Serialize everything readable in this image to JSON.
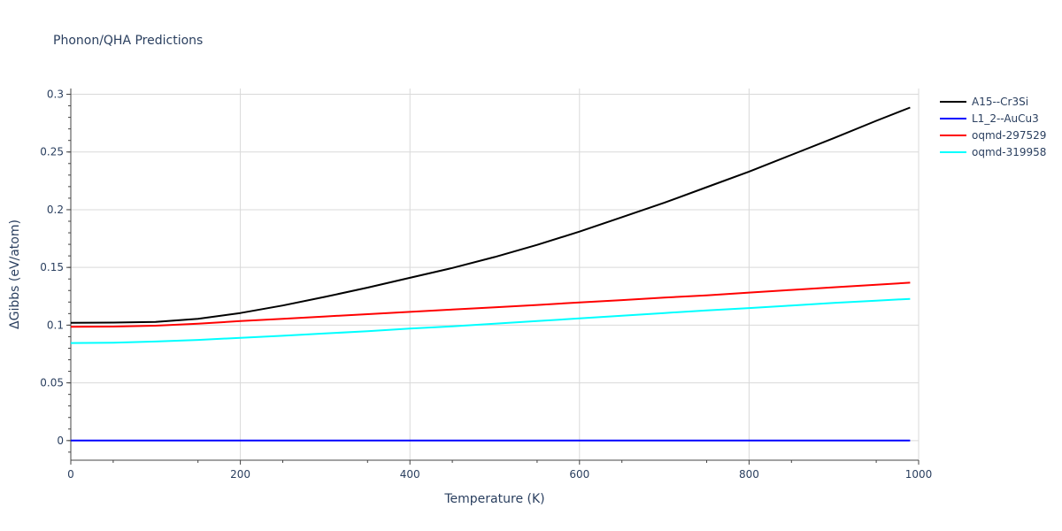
{
  "chart_data": {
    "type": "line",
    "title": "Phonon/QHA Predictions",
    "xlabel": "Temperature (K)",
    "ylabel": "ΔGibbs (eV/atom)",
    "xlim": [
      0,
      1000
    ],
    "ylim": [
      -0.017,
      0.305
    ],
    "x_ticks": [
      0,
      200,
      400,
      600,
      800,
      1000
    ],
    "x_tick_labels": [
      "0",
      "200",
      "400",
      "600",
      "800",
      "1000"
    ],
    "y_ticks": [
      0,
      0.05,
      0.1,
      0.15,
      0.2,
      0.25,
      0.3
    ],
    "y_tick_labels": [
      "0",
      "0.05",
      "0.1",
      "0.15",
      "0.2",
      "0.25",
      "0.3"
    ],
    "grid": true,
    "legend_position": "top-right",
    "series": [
      {
        "name": "A15--Cr3Si",
        "color": "#000000",
        "x": [
          0,
          50,
          100,
          150,
          200,
          250,
          300,
          350,
          400,
          450,
          500,
          550,
          600,
          650,
          700,
          750,
          800,
          850,
          900,
          950,
          990
        ],
        "y": [
          0.102,
          0.1022,
          0.1028,
          0.1055,
          0.1105,
          0.117,
          0.1245,
          0.1325,
          0.141,
          0.1495,
          0.159,
          0.1695,
          0.181,
          0.1935,
          0.206,
          0.2195,
          0.233,
          0.2475,
          0.262,
          0.277,
          0.2885
        ]
      },
      {
        "name": "L1_2--AuCu3",
        "color": "#0000ff",
        "x": [
          0,
          990
        ],
        "y": [
          0.0,
          0.0
        ]
      },
      {
        "name": "oqmd-297529",
        "color": "#ff0000",
        "x": [
          0,
          50,
          100,
          150,
          200,
          250,
          300,
          350,
          400,
          450,
          500,
          550,
          600,
          650,
          700,
          750,
          800,
          850,
          900,
          950,
          990
        ],
        "y": [
          0.0985,
          0.0988,
          0.0995,
          0.1012,
          0.1035,
          0.1055,
          0.1075,
          0.1095,
          0.1115,
          0.1135,
          0.1155,
          0.1175,
          0.1197,
          0.1217,
          0.1238,
          0.1258,
          0.1282,
          0.1305,
          0.1328,
          0.135,
          0.1368
        ]
      },
      {
        "name": "oqmd-319958",
        "color": "#00ffff",
        "x": [
          0,
          50,
          100,
          150,
          200,
          250,
          300,
          350,
          400,
          450,
          500,
          550,
          600,
          650,
          700,
          750,
          800,
          850,
          900,
          950,
          990
        ],
        "y": [
          0.0845,
          0.0848,
          0.0858,
          0.0872,
          0.089,
          0.0908,
          0.0928,
          0.0948,
          0.097,
          0.099,
          0.1012,
          0.1035,
          0.1058,
          0.1082,
          0.1105,
          0.1128,
          0.1148,
          0.117,
          0.1192,
          0.1212,
          0.1228
        ]
      }
    ]
  }
}
